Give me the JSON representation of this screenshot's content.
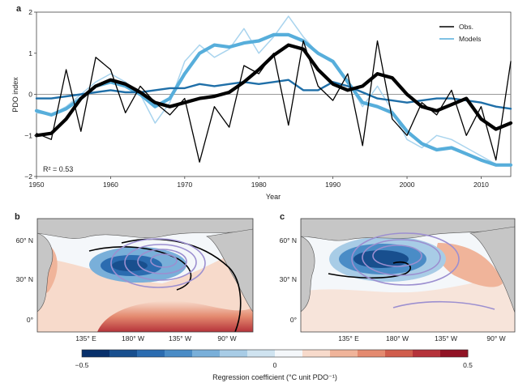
{
  "figure": {
    "panel_a_label": "a",
    "panel_b_label": "b",
    "panel_c_label": "c"
  },
  "chart_data": [
    {
      "type": "line",
      "panel": "a",
      "xlabel": "Year",
      "ylabel": "PDO index",
      "xlim": [
        1950,
        2014
      ],
      "ylim": [
        -2,
        2
      ],
      "xticks": [
        1950,
        1960,
        1970,
        1980,
        1990,
        2000,
        2010
      ],
      "yticks": [
        -2,
        -1,
        0,
        1,
        2
      ],
      "annotation": "R² = 0.53",
      "legend": {
        "placement": "top-right",
        "entries": [
          "Obs.",
          "Models"
        ]
      },
      "colors": {
        "obs": "#000000",
        "models_dark": "#1f6fa8",
        "models_mid": "#57aedb",
        "models_light": "#a9d4ee",
        "zero_line": "#777777"
      },
      "x": [
        1950,
        1952,
        1954,
        1956,
        1958,
        1960,
        1962,
        1964,
        1966,
        1968,
        1970,
        1972,
        1974,
        1976,
        1978,
        1980,
        1982,
        1984,
        1986,
        1988,
        1990,
        1992,
        1994,
        1996,
        1998,
        2000,
        2002,
        2004,
        2006,
        2008,
        2010,
        2012,
        2014
      ],
      "series": [
        {
          "name": "Obs.",
          "style": "raw",
          "values": [
            -0.95,
            -1.1,
            0.6,
            -0.9,
            0.9,
            0.6,
            -0.45,
            0.2,
            -0.2,
            -0.5,
            -0.1,
            -1.65,
            -0.3,
            -0.8,
            0.7,
            0.5,
            1.0,
            -0.75,
            1.3,
            0.2,
            -0.15,
            0.5,
            -1.25,
            1.3,
            -0.6,
            -1.0,
            -0.2,
            -0.5,
            0.1,
            -1.0,
            -0.3,
            -1.6,
            0.8
          ]
        },
        {
          "name": "Obs.",
          "style": "smoothed",
          "values": [
            -1.0,
            -0.95,
            -0.6,
            -0.1,
            0.2,
            0.35,
            0.25,
            0.05,
            -0.2,
            -0.3,
            -0.2,
            -0.1,
            -0.05,
            0.05,
            0.3,
            0.6,
            0.95,
            1.2,
            1.1,
            0.6,
            0.25,
            0.1,
            0.2,
            0.5,
            0.4,
            0.0,
            -0.3,
            -0.4,
            -0.25,
            -0.1,
            -0.6,
            -0.85,
            -0.7
          ]
        },
        {
          "name": "Models",
          "style": "light",
          "values": [
            -0.45,
            -0.5,
            -0.3,
            0.0,
            0.3,
            0.5,
            0.3,
            0.0,
            -0.7,
            -0.2,
            0.8,
            1.2,
            0.9,
            1.1,
            1.6,
            1.0,
            1.4,
            1.9,
            1.4,
            1.0,
            0.8,
            0.3,
            -0.3,
            0.2,
            -0.4,
            -1.1,
            -1.3,
            -1.0,
            -1.1,
            -1.3,
            -1.5,
            -1.7,
            -1.7
          ]
        },
        {
          "name": "Models",
          "style": "mid",
          "values": [
            -0.4,
            -0.5,
            -0.35,
            -0.1,
            0.2,
            0.3,
            0.2,
            0.0,
            -0.3,
            -0.1,
            0.5,
            1.0,
            1.2,
            1.15,
            1.25,
            1.3,
            1.45,
            1.45,
            1.3,
            1.0,
            0.8,
            0.3,
            -0.2,
            -0.3,
            -0.45,
            -0.9,
            -1.2,
            -1.35,
            -1.3,
            -1.45,
            -1.6,
            -1.72,
            -1.72
          ]
        },
        {
          "name": "Models",
          "style": "dark",
          "values": [
            -0.1,
            -0.1,
            -0.05,
            0.0,
            0.05,
            0.1,
            0.05,
            0.05,
            0.1,
            0.15,
            0.15,
            0.25,
            0.2,
            0.25,
            0.3,
            0.25,
            0.3,
            0.35,
            0.1,
            0.1,
            0.3,
            0.2,
            0.05,
            -0.1,
            -0.15,
            -0.2,
            -0.15,
            -0.1,
            -0.1,
            -0.15,
            -0.2,
            -0.3,
            -0.35
          ]
        }
      ]
    },
    {
      "type": "heatmap",
      "panel": "b",
      "yticks": [
        "60° N",
        "30° N",
        "0°"
      ],
      "xticks": [
        "135° E",
        "180° W",
        "135° W",
        "90° W"
      ]
    },
    {
      "type": "heatmap",
      "panel": "c",
      "yticks": [
        "60° N",
        "30° N",
        "0°"
      ],
      "xticks": [
        "135° E",
        "180° W",
        "135° W",
        "90° W"
      ]
    },
    {
      "type": "colorbar",
      "label": "Regression coefficient (°C unit PDO⁻¹)",
      "range": [
        -0.5,
        0.5
      ],
      "ticks": [
        "−0.5",
        "0",
        "0.5"
      ],
      "colors": [
        "#08306b",
        "#184f8e",
        "#2b6cb0",
        "#4a8cc6",
        "#79afd9",
        "#a8cce6",
        "#cfe3f0",
        "#f4f7fa",
        "#f7dacb",
        "#f0b49a",
        "#e48a6f",
        "#d05d4c",
        "#b5333a",
        "#911325"
      ]
    }
  ]
}
